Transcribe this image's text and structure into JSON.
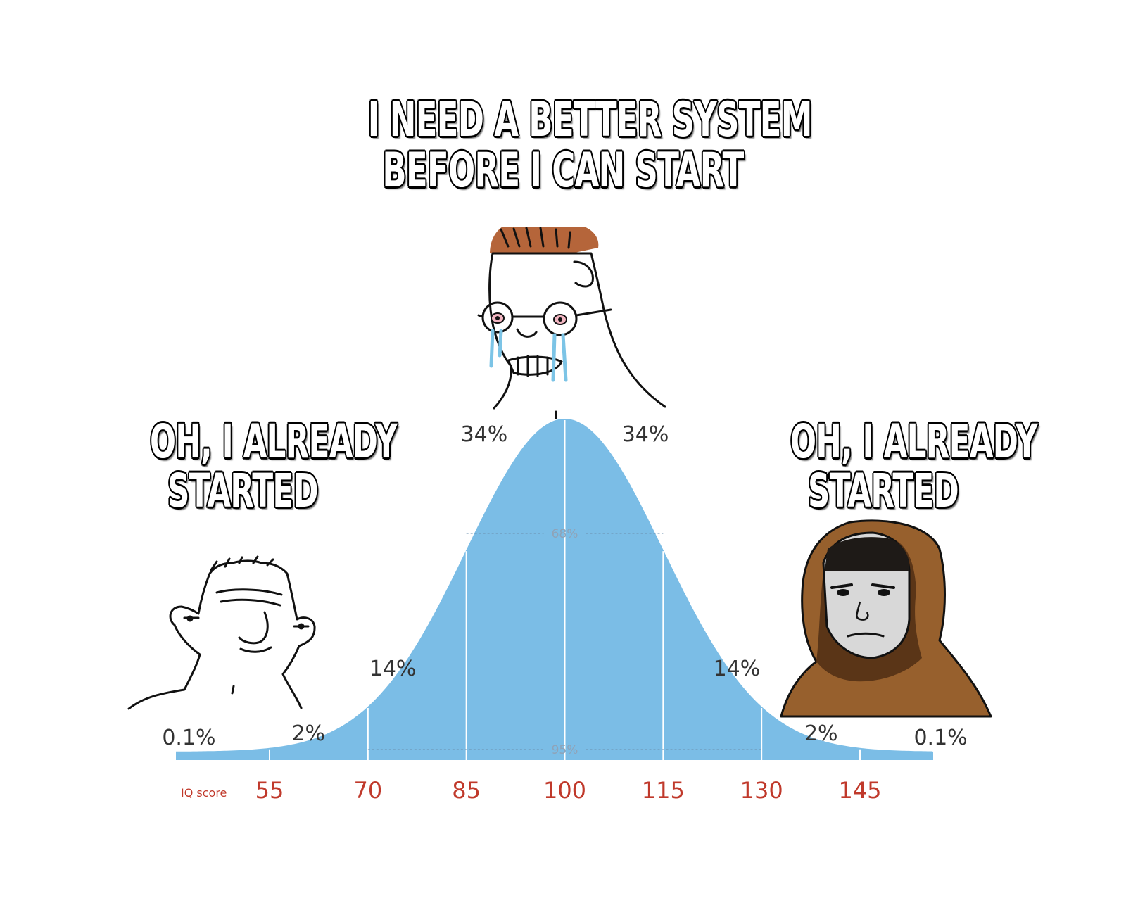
{
  "captions": {
    "top": [
      "I NEED A BETTER SYSTEM",
      "BEFORE I CAN START"
    ],
    "left": [
      "OH, I ALREADY",
      "STARTED"
    ],
    "right": [
      "OH, I ALREADY",
      "STARTED"
    ]
  },
  "characters": {
    "left": "wojak-simple-icon",
    "middle": "wojak-crying-glasses-icon",
    "right": "wojak-hooded-icon"
  },
  "colors": {
    "curve": "#7bbde6",
    "divider": "#ffffff",
    "tick": "#c0392b",
    "caption_fill": "#ffffff",
    "caption_outline": "#000000"
  },
  "chart_data": {
    "type": "area",
    "x_axis_name": "IQ score",
    "x_ticks": [
      55,
      70,
      85,
      100,
      115,
      130,
      145
    ],
    "mean": 100,
    "sd": 15,
    "xlim": [
      40,
      160
    ],
    "band_labels": [
      {
        "x": 47,
        "text": "0.1%"
      },
      {
        "x": 62,
        "text": "2%"
      },
      {
        "x": 77,
        "text": "14%"
      },
      {
        "x": 92,
        "text": "34%"
      },
      {
        "x": 108,
        "text": "34%"
      },
      {
        "x": 123,
        "text": "14%"
      },
      {
        "x": 138,
        "text": "2%"
      },
      {
        "x": 153,
        "text": "0.1%"
      }
    ],
    "intervals": [
      {
        "range": [
          85,
          115
        ],
        "text": "68%"
      },
      {
        "range": [
          70,
          130
        ],
        "text": "95%"
      }
    ]
  }
}
